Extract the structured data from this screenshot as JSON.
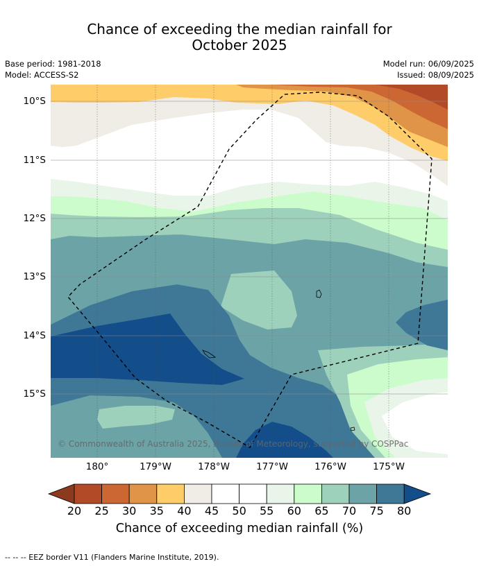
{
  "title_line1": "Chance of exceeding the median rainfall for",
  "title_line2": "October 2025",
  "meta_left": {
    "base_period": "Base period: 1981-2018",
    "model": "Model: ACCESS-S2"
  },
  "meta_right": {
    "model_run": "Model run: 06/09/2025",
    "issued": "Issued: 08/09/2025"
  },
  "copyright": "© Commonwealth of Australia 2025, Bureau of Meteorology, supported by COSPPac",
  "lat_labels": [
    "10°S",
    "11°S",
    "12°S",
    "13°S",
    "14°S",
    "15°S"
  ],
  "lon_labels": [
    "180°",
    "179°W",
    "178°W",
    "177°W",
    "176°W",
    "175°W"
  ],
  "colorbar": {
    "ticks": [
      "20",
      "25",
      "30",
      "35",
      "40",
      "45",
      "50",
      "55",
      "60",
      "65",
      "70",
      "75",
      "80"
    ],
    "colors": [
      "#8b3a1e",
      "#b24a28",
      "#cc6633",
      "#e09447",
      "#fecd69",
      "#f0ece6",
      "#ffffff",
      "#ffffff",
      "#e8f5e8",
      "#ccfccc",
      "#9ed1bb",
      "#6ca3a7",
      "#3f7897",
      "#134d8a"
    ],
    "label": "Chance of exceeding median rainfall (%)"
  },
  "footer": "--  --  -- EEZ border V11 (Flanders Marine Institute, 2019)."
}
